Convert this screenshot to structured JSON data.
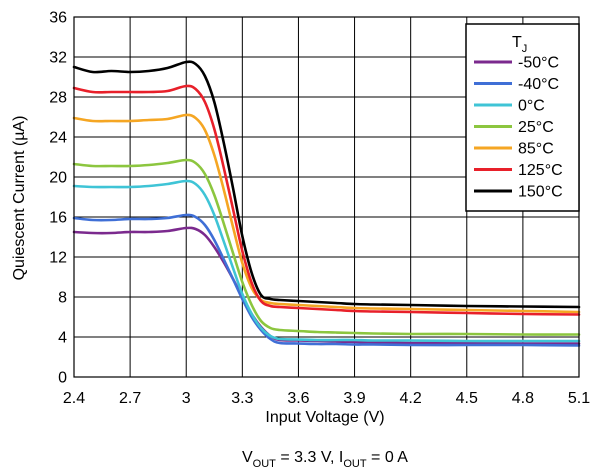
{
  "chart_data": {
    "type": "line",
    "title": "",
    "xlabel": "Input Voltage (V)",
    "ylabel": "Quiescent Current (µA)",
    "xlim": [
      2.4,
      5.1
    ],
    "ylim": [
      0,
      36
    ],
    "xticks": [
      2.4,
      2.7,
      3,
      3.3,
      3.6,
      3.9,
      4.2,
      4.5,
      4.8,
      5.1
    ],
    "xtick_labels": [
      "2.4",
      "2.7",
      "3",
      "3.3",
      "3.6",
      "3.9",
      "4.2",
      "4.5",
      "4.8",
      "5.1"
    ],
    "yticks": [
      0,
      4,
      8,
      12,
      16,
      20,
      24,
      28,
      32,
      36
    ],
    "ytick_labels": [
      "0",
      "4",
      "8",
      "12",
      "16",
      "20",
      "24",
      "28",
      "32",
      "36"
    ],
    "grid": true,
    "legend": {
      "title": "T",
      "title_sub": "J",
      "placement": "top-right"
    },
    "caption": {
      "v": "V",
      "v_sub": "OUT",
      "v_val": " = 3.3 V, ",
      "i": "I",
      "i_sub": "OUT",
      "i_val": " = 0 A"
    },
    "series": [
      {
        "name": "-50°C",
        "color": "#7b2a8e",
        "x": [
          2.4,
          2.5,
          2.6,
          2.7,
          2.8,
          2.9,
          3.0,
          3.05,
          3.1,
          3.15,
          3.2,
          3.25,
          3.3,
          3.35,
          3.4,
          3.45,
          3.5,
          3.6,
          3.7,
          3.8,
          3.9,
          4.0,
          4.2,
          4.5,
          4.8,
          5.1
        ],
        "y": [
          14.5,
          14.4,
          14.4,
          14.5,
          14.5,
          14.6,
          14.9,
          14.8,
          14.2,
          13.0,
          11.5,
          9.8,
          8.0,
          6.3,
          5.0,
          4.1,
          3.7,
          3.65,
          3.6,
          3.55,
          3.5,
          3.45,
          3.4,
          3.4,
          3.35,
          3.35
        ]
      },
      {
        "name": "-40°C",
        "color": "#3f6fd6",
        "x": [
          2.4,
          2.5,
          2.6,
          2.7,
          2.8,
          2.9,
          3.0,
          3.05,
          3.1,
          3.15,
          3.2,
          3.25,
          3.3,
          3.35,
          3.4,
          3.45,
          3.5,
          3.6,
          3.7,
          3.8,
          3.9,
          4.0,
          4.2,
          4.5,
          4.8,
          5.1
        ],
        "y": [
          15.9,
          15.7,
          15.7,
          15.8,
          15.8,
          15.9,
          16.2,
          16.0,
          15.2,
          13.7,
          11.8,
          9.8,
          7.8,
          6.0,
          4.7,
          3.8,
          3.4,
          3.35,
          3.3,
          3.3,
          3.25,
          3.25,
          3.2,
          3.2,
          3.2,
          3.15
        ]
      },
      {
        "name": "0°C",
        "color": "#3fc4d6",
        "x": [
          2.4,
          2.5,
          2.6,
          2.7,
          2.8,
          2.9,
          3.0,
          3.05,
          3.1,
          3.15,
          3.2,
          3.25,
          3.3,
          3.35,
          3.4,
          3.45,
          3.5,
          3.6,
          3.7,
          3.8,
          3.9,
          4.0,
          4.2,
          4.5,
          4.8,
          5.1
        ],
        "y": [
          19.1,
          19.0,
          19.0,
          19.0,
          19.1,
          19.3,
          19.6,
          19.3,
          18.2,
          16.2,
          13.6,
          10.9,
          8.3,
          6.3,
          4.9,
          4.1,
          3.8,
          3.75,
          3.7,
          3.7,
          3.7,
          3.65,
          3.65,
          3.6,
          3.6,
          3.6
        ]
      },
      {
        "name": "25°C",
        "color": "#8cc63f",
        "x": [
          2.4,
          2.5,
          2.6,
          2.7,
          2.8,
          2.9,
          3.0,
          3.05,
          3.1,
          3.15,
          3.2,
          3.25,
          3.3,
          3.35,
          3.4,
          3.45,
          3.5,
          3.6,
          3.7,
          3.8,
          3.9,
          4.0,
          4.2,
          4.5,
          4.8,
          5.1
        ],
        "y": [
          21.3,
          21.1,
          21.1,
          21.1,
          21.2,
          21.4,
          21.7,
          21.4,
          20.3,
          18.2,
          15.4,
          12.4,
          9.5,
          7.2,
          5.6,
          4.9,
          4.7,
          4.6,
          4.5,
          4.45,
          4.4,
          4.35,
          4.3,
          4.3,
          4.25,
          4.25
        ]
      },
      {
        "name": "85°C",
        "color": "#f5a623",
        "x": [
          2.4,
          2.5,
          2.6,
          2.7,
          2.8,
          2.9,
          3.0,
          3.05,
          3.1,
          3.15,
          3.2,
          3.25,
          3.3,
          3.35,
          3.4,
          3.45,
          3.5,
          3.6,
          3.7,
          3.8,
          3.9,
          4.0,
          4.2,
          4.5,
          4.8,
          5.1
        ],
        "y": [
          25.9,
          25.6,
          25.6,
          25.6,
          25.7,
          25.8,
          26.2,
          25.9,
          24.7,
          22.2,
          18.8,
          15.0,
          11.4,
          8.9,
          7.7,
          7.4,
          7.3,
          7.2,
          7.1,
          7.0,
          6.9,
          6.85,
          6.8,
          6.7,
          6.6,
          6.5
        ]
      },
      {
        "name": "125°C",
        "color": "#e8202a",
        "x": [
          2.4,
          2.5,
          2.6,
          2.7,
          2.8,
          2.9,
          3.0,
          3.05,
          3.1,
          3.15,
          3.2,
          3.25,
          3.3,
          3.35,
          3.4,
          3.45,
          3.5,
          3.6,
          3.7,
          3.8,
          3.9,
          4.0,
          4.2,
          4.5,
          4.8,
          5.1
        ],
        "y": [
          28.9,
          28.5,
          28.5,
          28.5,
          28.5,
          28.6,
          29.1,
          28.8,
          27.5,
          24.8,
          21.0,
          16.8,
          12.6,
          9.4,
          7.6,
          7.1,
          7.0,
          6.9,
          6.8,
          6.7,
          6.6,
          6.55,
          6.5,
          6.4,
          6.3,
          6.25
        ]
      },
      {
        "name": "150°C",
        "color": "#000000",
        "x": [
          2.4,
          2.5,
          2.6,
          2.7,
          2.8,
          2.9,
          3.0,
          3.05,
          3.1,
          3.15,
          3.2,
          3.25,
          3.3,
          3.35,
          3.4,
          3.45,
          3.5,
          3.6,
          3.7,
          3.8,
          3.9,
          4.0,
          4.2,
          4.5,
          4.8,
          5.1
        ],
        "y": [
          31.0,
          30.5,
          30.6,
          30.5,
          30.6,
          30.9,
          31.5,
          31.3,
          30.1,
          27.5,
          23.5,
          18.9,
          14.1,
          10.4,
          8.2,
          7.8,
          7.7,
          7.6,
          7.5,
          7.4,
          7.3,
          7.25,
          7.2,
          7.1,
          7.05,
          7.0
        ]
      }
    ]
  }
}
